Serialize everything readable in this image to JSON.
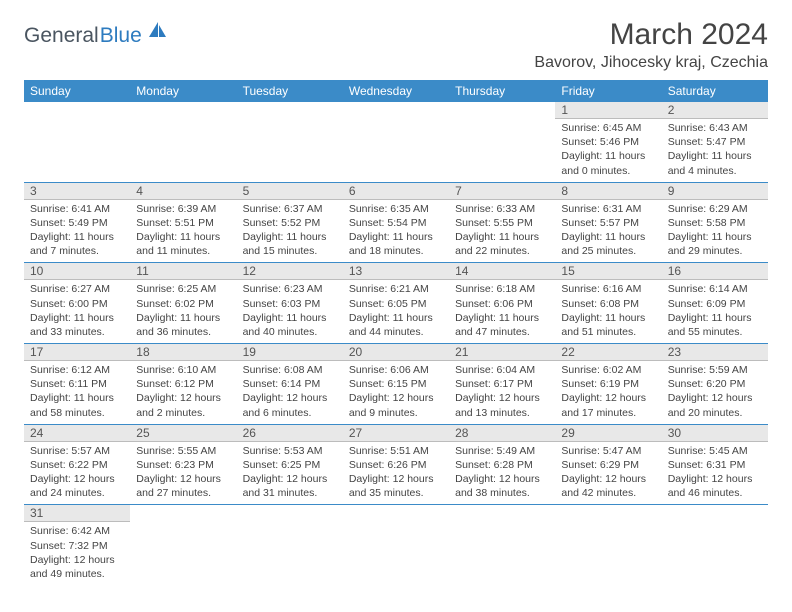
{
  "brand": {
    "text_general": "General",
    "text_blue": "Blue",
    "icon_color": "#2d7bbf"
  },
  "title": {
    "month_year": "March 2024",
    "location": "Bavorov, Jihocesky kraj, Czechia"
  },
  "colors": {
    "header_bg": "#3b8bc8",
    "header_text": "#ffffff",
    "daynum_bg": "#e8e8e8",
    "daynum_border": "#bcbcbc",
    "row_border": "#3b8bc8",
    "body_text": "#444444"
  },
  "day_headers": [
    "Sunday",
    "Monday",
    "Tuesday",
    "Wednesday",
    "Thursday",
    "Friday",
    "Saturday"
  ],
  "weeks": [
    [
      null,
      null,
      null,
      null,
      null,
      {
        "num": "1",
        "sunrise": "Sunrise: 6:45 AM",
        "sunset": "Sunset: 5:46 PM",
        "daylight": "Daylight: 11 hours and 0 minutes."
      },
      {
        "num": "2",
        "sunrise": "Sunrise: 6:43 AM",
        "sunset": "Sunset: 5:47 PM",
        "daylight": "Daylight: 11 hours and 4 minutes."
      }
    ],
    [
      {
        "num": "3",
        "sunrise": "Sunrise: 6:41 AM",
        "sunset": "Sunset: 5:49 PM",
        "daylight": "Daylight: 11 hours and 7 minutes."
      },
      {
        "num": "4",
        "sunrise": "Sunrise: 6:39 AM",
        "sunset": "Sunset: 5:51 PM",
        "daylight": "Daylight: 11 hours and 11 minutes."
      },
      {
        "num": "5",
        "sunrise": "Sunrise: 6:37 AM",
        "sunset": "Sunset: 5:52 PM",
        "daylight": "Daylight: 11 hours and 15 minutes."
      },
      {
        "num": "6",
        "sunrise": "Sunrise: 6:35 AM",
        "sunset": "Sunset: 5:54 PM",
        "daylight": "Daylight: 11 hours and 18 minutes."
      },
      {
        "num": "7",
        "sunrise": "Sunrise: 6:33 AM",
        "sunset": "Sunset: 5:55 PM",
        "daylight": "Daylight: 11 hours and 22 minutes."
      },
      {
        "num": "8",
        "sunrise": "Sunrise: 6:31 AM",
        "sunset": "Sunset: 5:57 PM",
        "daylight": "Daylight: 11 hours and 25 minutes."
      },
      {
        "num": "9",
        "sunrise": "Sunrise: 6:29 AM",
        "sunset": "Sunset: 5:58 PM",
        "daylight": "Daylight: 11 hours and 29 minutes."
      }
    ],
    [
      {
        "num": "10",
        "sunrise": "Sunrise: 6:27 AM",
        "sunset": "Sunset: 6:00 PM",
        "daylight": "Daylight: 11 hours and 33 minutes."
      },
      {
        "num": "11",
        "sunrise": "Sunrise: 6:25 AM",
        "sunset": "Sunset: 6:02 PM",
        "daylight": "Daylight: 11 hours and 36 minutes."
      },
      {
        "num": "12",
        "sunrise": "Sunrise: 6:23 AM",
        "sunset": "Sunset: 6:03 PM",
        "daylight": "Daylight: 11 hours and 40 minutes."
      },
      {
        "num": "13",
        "sunrise": "Sunrise: 6:21 AM",
        "sunset": "Sunset: 6:05 PM",
        "daylight": "Daylight: 11 hours and 44 minutes."
      },
      {
        "num": "14",
        "sunrise": "Sunrise: 6:18 AM",
        "sunset": "Sunset: 6:06 PM",
        "daylight": "Daylight: 11 hours and 47 minutes."
      },
      {
        "num": "15",
        "sunrise": "Sunrise: 6:16 AM",
        "sunset": "Sunset: 6:08 PM",
        "daylight": "Daylight: 11 hours and 51 minutes."
      },
      {
        "num": "16",
        "sunrise": "Sunrise: 6:14 AM",
        "sunset": "Sunset: 6:09 PM",
        "daylight": "Daylight: 11 hours and 55 minutes."
      }
    ],
    [
      {
        "num": "17",
        "sunrise": "Sunrise: 6:12 AM",
        "sunset": "Sunset: 6:11 PM",
        "daylight": "Daylight: 11 hours and 58 minutes."
      },
      {
        "num": "18",
        "sunrise": "Sunrise: 6:10 AM",
        "sunset": "Sunset: 6:12 PM",
        "daylight": "Daylight: 12 hours and 2 minutes."
      },
      {
        "num": "19",
        "sunrise": "Sunrise: 6:08 AM",
        "sunset": "Sunset: 6:14 PM",
        "daylight": "Daylight: 12 hours and 6 minutes."
      },
      {
        "num": "20",
        "sunrise": "Sunrise: 6:06 AM",
        "sunset": "Sunset: 6:15 PM",
        "daylight": "Daylight: 12 hours and 9 minutes."
      },
      {
        "num": "21",
        "sunrise": "Sunrise: 6:04 AM",
        "sunset": "Sunset: 6:17 PM",
        "daylight": "Daylight: 12 hours and 13 minutes."
      },
      {
        "num": "22",
        "sunrise": "Sunrise: 6:02 AM",
        "sunset": "Sunset: 6:19 PM",
        "daylight": "Daylight: 12 hours and 17 minutes."
      },
      {
        "num": "23",
        "sunrise": "Sunrise: 5:59 AM",
        "sunset": "Sunset: 6:20 PM",
        "daylight": "Daylight: 12 hours and 20 minutes."
      }
    ],
    [
      {
        "num": "24",
        "sunrise": "Sunrise: 5:57 AM",
        "sunset": "Sunset: 6:22 PM",
        "daylight": "Daylight: 12 hours and 24 minutes."
      },
      {
        "num": "25",
        "sunrise": "Sunrise: 5:55 AM",
        "sunset": "Sunset: 6:23 PM",
        "daylight": "Daylight: 12 hours and 27 minutes."
      },
      {
        "num": "26",
        "sunrise": "Sunrise: 5:53 AM",
        "sunset": "Sunset: 6:25 PM",
        "daylight": "Daylight: 12 hours and 31 minutes."
      },
      {
        "num": "27",
        "sunrise": "Sunrise: 5:51 AM",
        "sunset": "Sunset: 6:26 PM",
        "daylight": "Daylight: 12 hours and 35 minutes."
      },
      {
        "num": "28",
        "sunrise": "Sunrise: 5:49 AM",
        "sunset": "Sunset: 6:28 PM",
        "daylight": "Daylight: 12 hours and 38 minutes."
      },
      {
        "num": "29",
        "sunrise": "Sunrise: 5:47 AM",
        "sunset": "Sunset: 6:29 PM",
        "daylight": "Daylight: 12 hours and 42 minutes."
      },
      {
        "num": "30",
        "sunrise": "Sunrise: 5:45 AM",
        "sunset": "Sunset: 6:31 PM",
        "daylight": "Daylight: 12 hours and 46 minutes."
      }
    ],
    [
      {
        "num": "31",
        "sunrise": "Sunrise: 6:42 AM",
        "sunset": "Sunset: 7:32 PM",
        "daylight": "Daylight: 12 hours and 49 minutes."
      },
      null,
      null,
      null,
      null,
      null,
      null
    ]
  ]
}
